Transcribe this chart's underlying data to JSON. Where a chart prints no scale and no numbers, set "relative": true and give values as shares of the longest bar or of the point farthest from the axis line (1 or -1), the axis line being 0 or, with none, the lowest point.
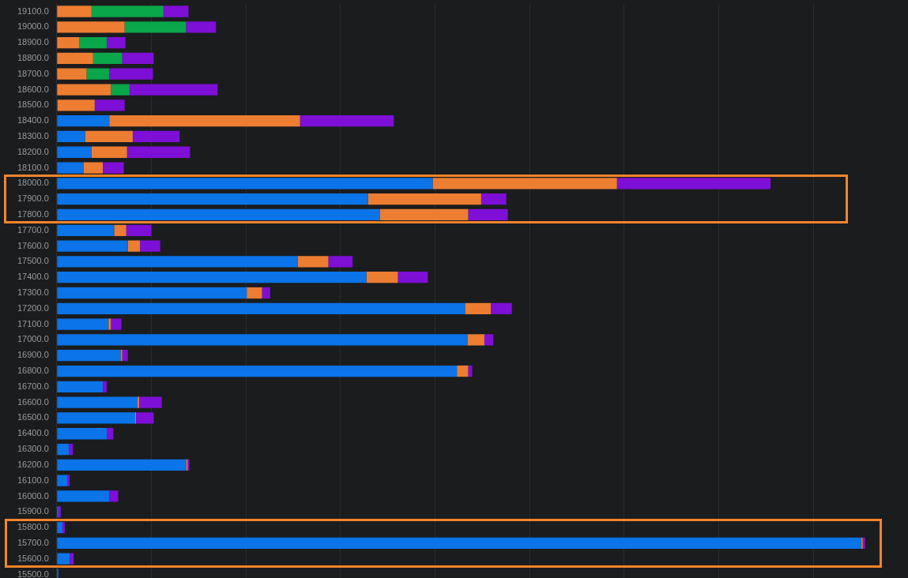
{
  "chart_data": {
    "type": "bar",
    "orientation": "horizontal",
    "stacked": true,
    "relative": true,
    "grid": "x",
    "legend": false,
    "categories": [
      "19100.0",
      "19000.0",
      "18900.0",
      "18800.0",
      "18700.0",
      "18600.0",
      "18500.0",
      "18400.0",
      "18300.0",
      "18200.0",
      "18100.0",
      "18000.0",
      "17900.0",
      "17800.0",
      "17700.0",
      "17600.0",
      "17500.0",
      "17400.0",
      "17300.0",
      "17200.0",
      "17100.0",
      "17000.0",
      "16900.0",
      "16800.0",
      "16700.0",
      "16600.0",
      "16500.0",
      "16400.0",
      "16300.0",
      "16200.0",
      "16100.0",
      "16000.0",
      "15900.0",
      "15800.0",
      "15700.0",
      "15600.0",
      "15500.0"
    ],
    "series": [
      {
        "color": "#0a74e8",
        "values": [
          0,
          0,
          0,
          0,
          0,
          0,
          0.001,
          0.065,
          0.035,
          0.043,
          0.033,
          0.465,
          0.385,
          0.4,
          0.071,
          0.088,
          0.298,
          0.383,
          0.235,
          0.505,
          0.064,
          0.508,
          0.079,
          0.495,
          0.057,
          0.1,
          0.097,
          0.062,
          0.015,
          0.16,
          0.013,
          0.065,
          0.002,
          0.007,
          0.995,
          0.016,
          0.002
        ]
      },
      {
        "color": "#ed7d31",
        "values": [
          0.043,
          0.084,
          0.028,
          0.045,
          0.037,
          0.067,
          0.046,
          0.236,
          0.059,
          0.044,
          0.024,
          0.228,
          0.14,
          0.109,
          0.015,
          0.015,
          0.038,
          0.039,
          0.019,
          0.032,
          0.003,
          0.021,
          0.002,
          0.014,
          0,
          0.002,
          0.001,
          0,
          0,
          0.002,
          0,
          0,
          0,
          0,
          0.002,
          0,
          0
        ]
      },
      {
        "color": "#0aa64a",
        "values": [
          0.089,
          0.076,
          0.034,
          0.036,
          0.028,
          0.023,
          0,
          0,
          0,
          0,
          0,
          0,
          0,
          0,
          0,
          0,
          0,
          0,
          0,
          0,
          0,
          0,
          0,
          0,
          0,
          0,
          0,
          0,
          0,
          0,
          0,
          0,
          0,
          0,
          0,
          0,
          0
        ]
      },
      {
        "color": "#7e0fd6",
        "values": [
          0.031,
          0.037,
          0.023,
          0.039,
          0.054,
          0.109,
          0.037,
          0.116,
          0.058,
          0.078,
          0.026,
          0.19,
          0.031,
          0.049,
          0.031,
          0.025,
          0.03,
          0.037,
          0.01,
          0.026,
          0.013,
          0.011,
          0.007,
          0.005,
          0.005,
          0.028,
          0.022,
          0.008,
          0.005,
          0.002,
          0.003,
          0.011,
          0.003,
          0.003,
          0.003,
          0.005,
          0
        ]
      }
    ]
  }
}
